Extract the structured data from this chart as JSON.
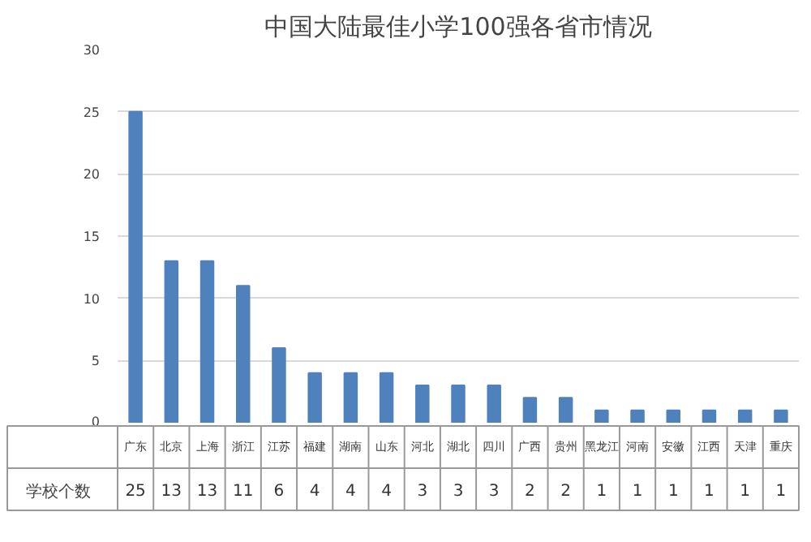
{
  "chart_data": {
    "type": "bar",
    "title": "中国大陆最佳小学100强各省市情况",
    "categories": [
      "广东",
      "北京",
      "上海",
      "浙江",
      "江苏",
      "福建",
      "湖南",
      "山东",
      "河北",
      "湖北",
      "四川",
      "广西",
      "贵州",
      "黑龙江",
      "河南",
      "安徽",
      "江西",
      "天津",
      "重庆"
    ],
    "series": [
      {
        "name": "学校个数",
        "color": "#4f81bd",
        "values": [
          25,
          13,
          13,
          11,
          6,
          4,
          4,
          4,
          3,
          3,
          3,
          2,
          2,
          1,
          1,
          1,
          1,
          1,
          1
        ]
      }
    ],
    "ylim": [
      0,
      30
    ],
    "yticks": [
      0,
      5,
      10,
      15,
      20,
      25,
      30
    ],
    "grid": "y",
    "data_labels": true,
    "legend": "bottom left"
  }
}
